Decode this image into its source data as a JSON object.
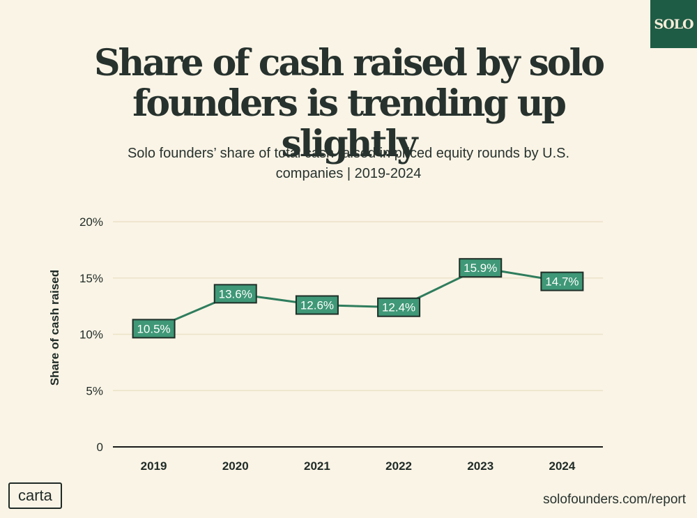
{
  "badge": {
    "label": "SOLO"
  },
  "header": {
    "title": "Share of cash raised by solo founders is trending up slightly",
    "subtitle": "Solo founders’ share of total cash raised in priced equity rounds by U.S. companies | 2019-2024"
  },
  "footer": {
    "logo_text": "carta",
    "url": "solofounders.com/report"
  },
  "colors": {
    "line": "#2e7d5d",
    "label_fill": "#3f9877",
    "label_text": "#ffffff",
    "label_border": "#1e2e27",
    "grid": "#ece2c8",
    "axis": "#1a1a1a",
    "badge": "#1e5c45",
    "background": "#faf4e6"
  },
  "chart_data": {
    "type": "line",
    "title": "",
    "xlabel": "",
    "ylabel": "Share of cash raised",
    "categories": [
      "2019",
      "2020",
      "2021",
      "2022",
      "2023",
      "2024"
    ],
    "series": [
      {
        "values": [
          10.5,
          13.6,
          12.6,
          12.4,
          15.9,
          14.7
        ]
      }
    ],
    "data_labels": [
      "10.5%",
      "13.6%",
      "12.6%",
      "12.4%",
      "15.9%",
      "14.7%"
    ],
    "y_ticks": [
      0,
      5,
      10,
      15,
      20
    ],
    "y_tick_labels": [
      "0",
      "5%",
      "10%",
      "15%",
      "20%"
    ],
    "ylim": [
      0,
      20
    ],
    "grid": true,
    "legend": "none"
  }
}
